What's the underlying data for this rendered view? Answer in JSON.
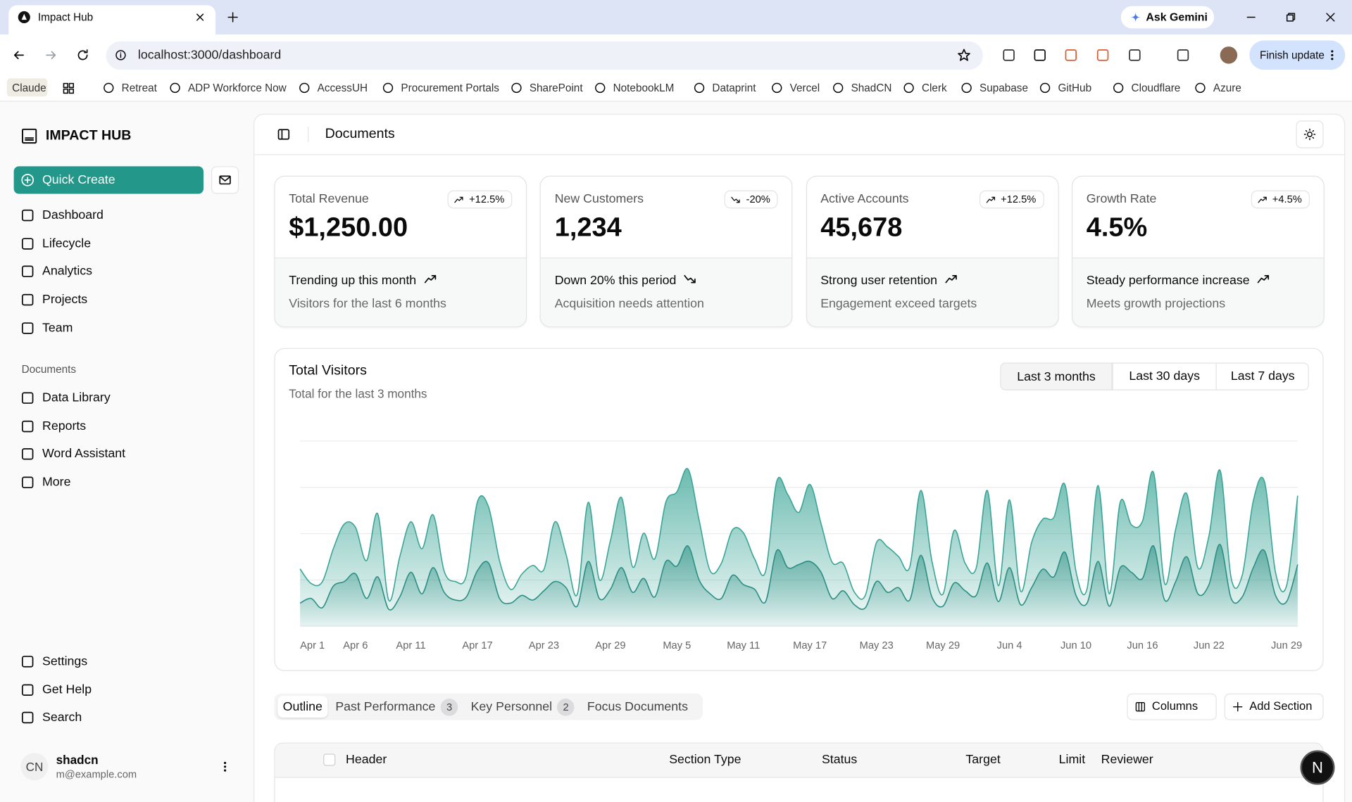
{
  "browser": {
    "tab_title": "Impact Hub",
    "ask": "Ask Gemini",
    "url": "localhost:3000/dashboard",
    "update": "Finish update",
    "bookmarks": [
      "Claude",
      "Retreat",
      "ADP Workforce Now",
      "AccessUH",
      "Procurement Portals",
      "SharePoint",
      "NotebookLM",
      "Dataprint",
      "Vercel",
      "ShadCN",
      "Clerk",
      "Supabase",
      "GitHub",
      "Cloudflare",
      "Azure"
    ]
  },
  "sidebar": {
    "brand": "IMPACT HUB",
    "quick_create": "Quick Create",
    "nav": [
      "Dashboard",
      "Lifecycle",
      "Analytics",
      "Projects",
      "Team"
    ],
    "documents_label": "Documents",
    "documents": [
      "Data Library",
      "Reports",
      "Word Assistant",
      "More"
    ],
    "footer": [
      "Settings",
      "Get Help",
      "Search"
    ],
    "user": {
      "initials": "CN",
      "name": "shadcn",
      "email": "m@example.com"
    }
  },
  "header": {
    "title": "Documents"
  },
  "cards": [
    {
      "label": "Total Revenue",
      "value": "$1,250.00",
      "badge": "+12.5%",
      "trend": "Trending up this month",
      "note": "Visitors for the last 6 months"
    },
    {
      "label": "New Customers",
      "value": "1,234",
      "badge": "-20%",
      "trend": "Down 20% this period",
      "note": "Acquisition needs attention"
    },
    {
      "label": "Active Accounts",
      "value": "45,678",
      "badge": "+12.5%",
      "trend": "Strong user retention",
      "note": "Engagement exceed targets"
    },
    {
      "label": "Growth Rate",
      "value": "4.5%",
      "badge": "+4.5%",
      "trend": "Steady performance increase",
      "note": "Meets growth projections"
    }
  ],
  "chart_data": {
    "type": "area",
    "title": "Total Visitors",
    "subtitle": "Total for the last 3 months",
    "ranges": [
      "Last 3 months",
      "Last 30 days",
      "Last 7 days"
    ],
    "stacked": true,
    "ylim": [
      0,
      1200
    ],
    "categories": [
      "Apr 1",
      null,
      null,
      null,
      null,
      "Apr 6",
      null,
      null,
      null,
      null,
      "Apr 11",
      null,
      null,
      null,
      null,
      null,
      "Apr 17",
      null,
      null,
      null,
      null,
      null,
      "Apr 23",
      null,
      null,
      null,
      null,
      null,
      "Apr 29",
      null,
      null,
      null,
      null,
      null,
      "May 5",
      null,
      null,
      null,
      null,
      null,
      "May 11",
      null,
      null,
      null,
      null,
      null,
      "May 17",
      null,
      null,
      null,
      null,
      null,
      "May 23",
      null,
      null,
      null,
      null,
      null,
      "May 29",
      null,
      null,
      null,
      null,
      null,
      "Jun 4",
      null,
      null,
      null,
      null,
      null,
      "Jun 10",
      null,
      null,
      null,
      null,
      null,
      "Jun 16",
      null,
      null,
      null,
      null,
      null,
      "Jun 22",
      null,
      null,
      null,
      null,
      null,
      null,
      "Jun 29",
      null
    ],
    "series": [
      {
        "color": "#2b8f84",
        "values": [
          150,
          180,
          120,
          260,
          290,
          340,
          180,
          320,
          110,
          190,
          350,
          210,
          380,
          220,
          170,
          190,
          360,
          410,
          180,
          150,
          200,
          170,
          230,
          290,
          250,
          130,
          420,
          180,
          240,
          380,
          220,
          310,
          190,
          420,
          390,
          520,
          300,
          210,
          180,
          330,
          270,
          240,
          160,
          490,
          380,
          400,
          420,
          350,
          180,
          230,
          140,
          120,
          290,
          220,
          250,
          170,
          460,
          190,
          130,
          280,
          230,
          200,
          410,
          160,
          380,
          140,
          250,
          370,
          320,
          480,
          200,
          150,
          420,
          130,
          380,
          350,
          310,
          520,
          170,
          290,
          450,
          210,
          270,
          530,
          180,
          190,
          380,
          490,
          200,
          160,
          400
        ]
      },
      {
        "color": "#3aa596",
        "values": [
          222,
          97,
          167,
          242,
          373,
          301,
          245,
          409,
          59,
          261,
          327,
          292,
          342,
          137,
          120,
          138,
          446,
          364,
          243,
          89,
          137,
          224,
          138,
          387,
          215,
          75,
          383,
          122,
          315,
          454,
          165,
          293,
          247,
          385,
          481,
          498,
          388,
          149,
          227,
          293,
          335,
          197,
          197,
          448,
          473,
          338,
          499,
          315,
          235,
          177,
          82,
          81,
          252,
          294,
          201,
          213,
          420,
          233,
          78,
          340,
          178,
          178,
          470,
          103,
          439,
          88,
          294,
          323,
          385,
          438,
          155,
          92,
          492,
          81,
          426,
          307,
          371,
          475,
          107,
          341,
          408,
          169,
          317,
          480,
          132,
          141,
          434,
          448,
          149,
          103,
          446
        ]
      }
    ]
  },
  "tabs": [
    {
      "label": "Outline"
    },
    {
      "label": "Past Performance",
      "count": 3
    },
    {
      "label": "Key Personnel",
      "count": 2
    },
    {
      "label": "Focus Documents"
    }
  ],
  "actions": [
    "Columns",
    "Add Section"
  ],
  "table": {
    "headers": [
      "Header",
      "Section Type",
      "Status",
      "Target",
      "Limit",
      "Reviewer"
    ]
  },
  "floating": "N"
}
